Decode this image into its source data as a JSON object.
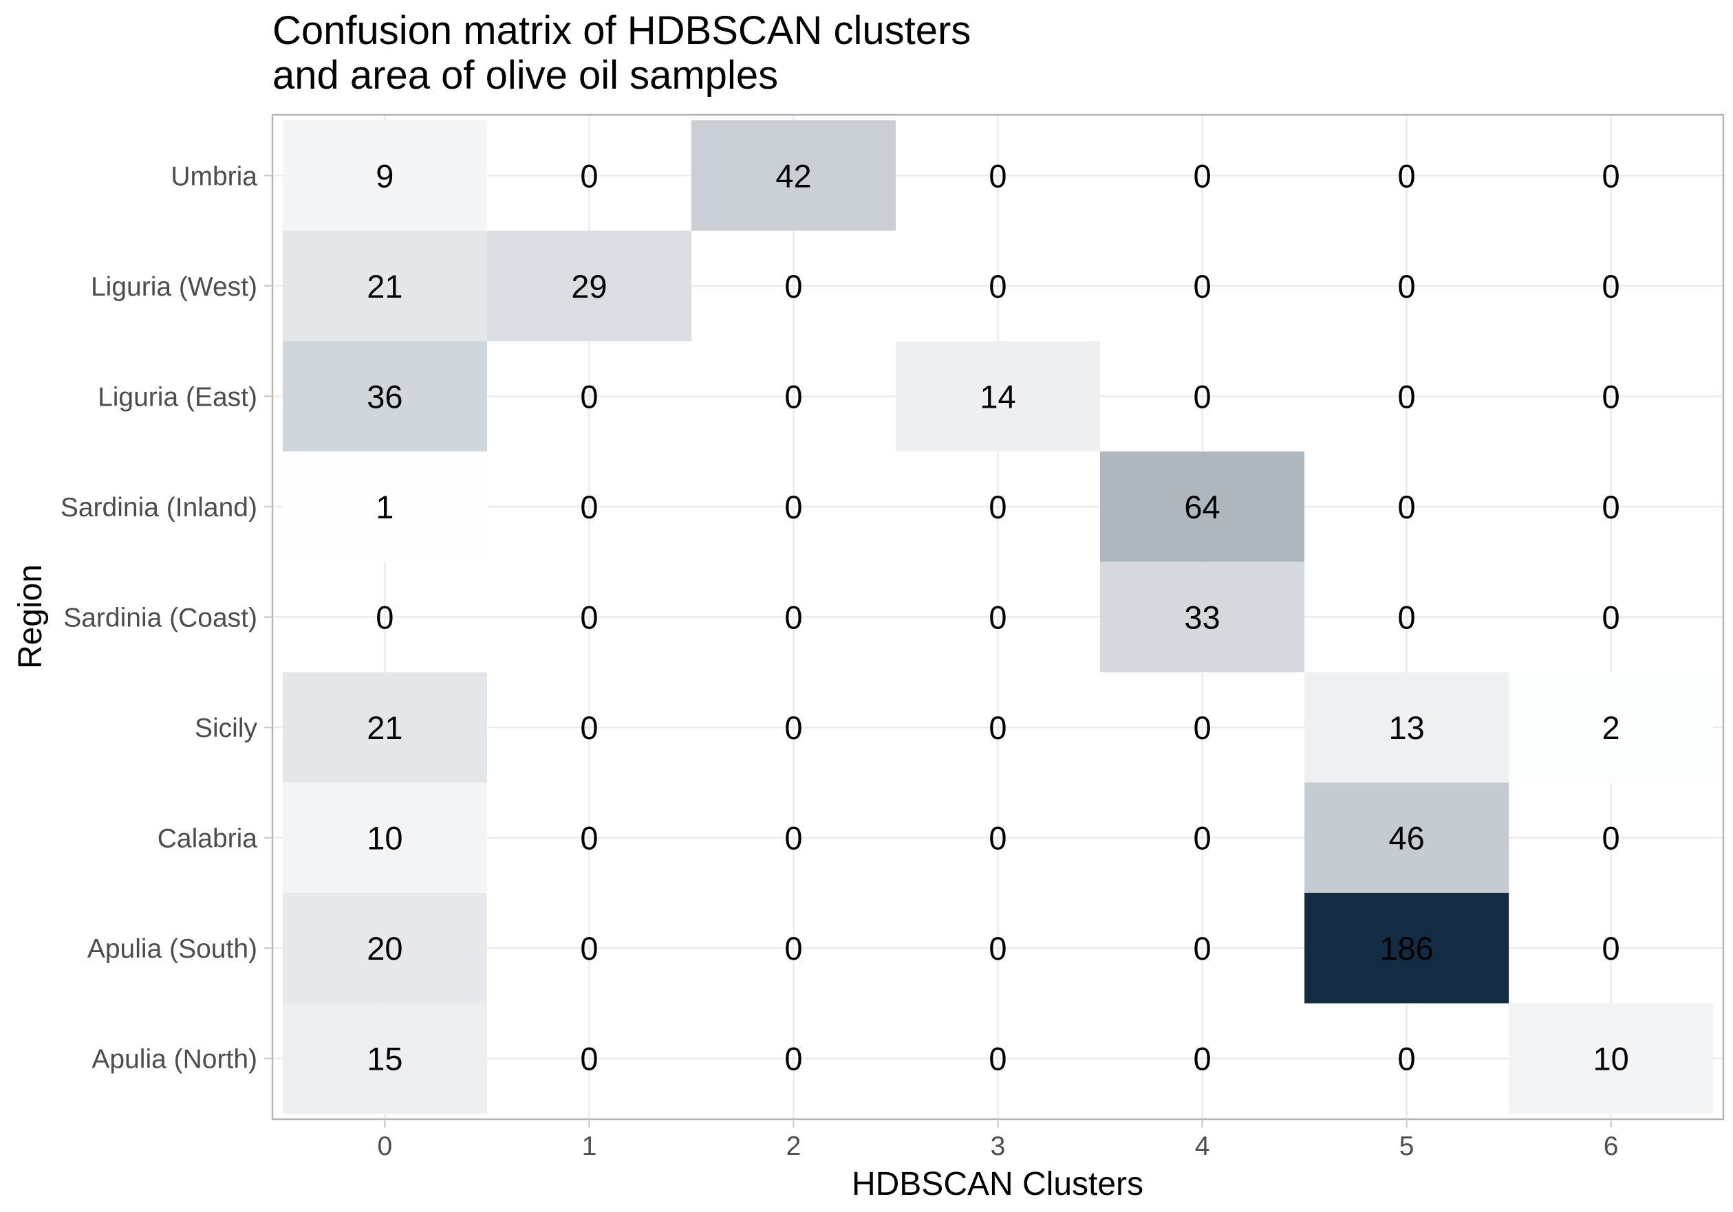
{
  "chart_data": {
    "type": "heatmap",
    "title_lines": [
      "Confusion matrix of HDBSCAN clusters",
      "and area of olive oil samples"
    ],
    "xlabel": "HDBSCAN Clusters",
    "ylabel": "Region",
    "x_categories": [
      "0",
      "1",
      "2",
      "3",
      "4",
      "5",
      "6"
    ],
    "y_categories": [
      "Umbria",
      "Liguria (West)",
      "Liguria (East)",
      "Sardinia (Inland)",
      "Sardinia (Coast)",
      "Sicily",
      "Calabria",
      "Apulia (South)",
      "Apulia (North)"
    ],
    "values": [
      [
        9,
        0,
        42,
        0,
        0,
        0,
        0
      ],
      [
        21,
        29,
        0,
        0,
        0,
        0,
        0
      ],
      [
        36,
        0,
        0,
        14,
        0,
        0,
        0
      ],
      [
        1,
        0,
        0,
        0,
        64,
        0,
        0
      ],
      [
        0,
        0,
        0,
        0,
        33,
        0,
        0
      ],
      [
        21,
        0,
        0,
        0,
        0,
        13,
        2
      ],
      [
        10,
        0,
        0,
        0,
        0,
        46,
        0
      ],
      [
        20,
        0,
        0,
        0,
        0,
        186,
        0
      ],
      [
        15,
        0,
        0,
        0,
        0,
        0,
        10
      ]
    ],
    "value_range": [
      0,
      186
    ],
    "color_low": "#ffffff",
    "color_high": "#132b43",
    "grid": true,
    "legend": "none"
  }
}
